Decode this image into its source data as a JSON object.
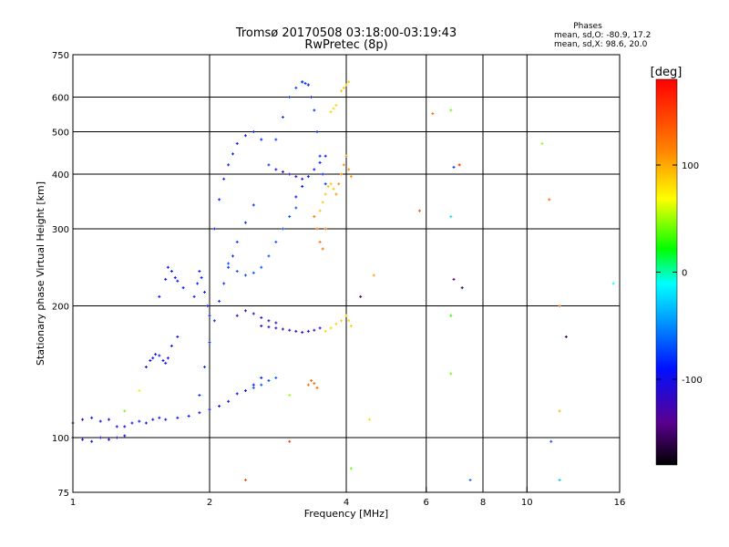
{
  "chart_data": {
    "type": "scatter",
    "title": "Tromsø 20170508 03:18:00-03:19:43",
    "subtitle": "RwPretec (8p)",
    "xlabel": "Frequency [MHz]",
    "ylabel": "Stationary phase Virtual Height [km]",
    "x_scale": "log",
    "y_scale": "log",
    "xlim": [
      1,
      16
    ],
    "ylim": [
      75,
      750
    ],
    "x_ticks": [
      1,
      2,
      4,
      6,
      8,
      10,
      16
    ],
    "y_ticks": [
      75,
      100,
      200,
      300,
      400,
      500,
      600,
      750
    ],
    "grid": true,
    "stats": {
      "heading": "Phases",
      "line_o": "mean, sd,O: -80.9, 17.2",
      "line_x": "mean, sd,X:  98.6, 20.0"
    },
    "colorbar": {
      "label": "[deg]",
      "range": [
        -180,
        180
      ],
      "ticks": [
        100,
        0,
        -100
      ]
    },
    "traces": [
      {
        "f": [
          1.0,
          1.05,
          1.1,
          1.15,
          1.2,
          1.25,
          1.3
        ],
        "h": [
          100,
          99,
          98,
          100,
          99,
          100,
          101
        ],
        "phase": -100
      },
      {
        "f": [
          1.0,
          1.05,
          1.1,
          1.15,
          1.2
        ],
        "h": [
          108,
          110,
          111,
          109,
          110
        ],
        "phase": -98
      },
      {
        "f": [
          1.25,
          1.3,
          1.35,
          1.4,
          1.45,
          1.5,
          1.55,
          1.6,
          1.7,
          1.8,
          1.9,
          2.0,
          2.1,
          2.2,
          2.3,
          2.4,
          2.5,
          2.6
        ],
        "h": [
          106,
          106,
          108,
          109,
          108,
          110,
          111,
          110,
          111,
          112,
          114,
          116,
          118,
          121,
          126,
          128,
          132,
          137
        ],
        "phase": -92
      },
      {
        "f": [
          1.45,
          1.48,
          1.5,
          1.52,
          1.55,
          1.58,
          1.6,
          1.62,
          1.65,
          1.7
        ],
        "h": [
          145,
          150,
          152,
          155,
          154,
          150,
          148,
          152,
          162,
          170
        ],
        "phase": -95
      },
      {
        "f": [
          1.55,
          1.6,
          1.62,
          1.65,
          1.68,
          1.7,
          1.75
        ],
        "h": [
          210,
          230,
          245,
          240,
          232,
          228,
          220
        ],
        "phase": -90
      },
      {
        "f": [
          1.85,
          1.88,
          1.9,
          1.92,
          1.95,
          1.98,
          2.0
        ],
        "h": [
          210,
          225,
          240,
          232,
          215,
          200,
          190
        ],
        "phase": -85
      },
      {
        "f": [
          1.9,
          1.95,
          2.0,
          2.05,
          2.1,
          2.15,
          2.2,
          2.25,
          2.3,
          2.4,
          2.5
        ],
        "h": [
          125,
          145,
          165,
          185,
          205,
          225,
          245,
          260,
          280,
          310,
          340
        ],
        "phase": -80
      },
      {
        "f": [
          2.05,
          2.1,
          2.15,
          2.2,
          2.25,
          2.3,
          2.4,
          2.5,
          2.6
        ],
        "h": [
          300,
          350,
          390,
          420,
          445,
          470,
          490,
          500,
          480
        ],
        "phase": -85
      },
      {
        "f": [
          2.2,
          2.3,
          2.4,
          2.5,
          2.6,
          2.7,
          2.8,
          2.9,
          3.0,
          3.1
        ],
        "h": [
          250,
          240,
          235,
          238,
          245,
          260,
          280,
          300,
          320,
          335
        ],
        "phase": -70
      },
      {
        "f": [
          2.7,
          2.8,
          2.9,
          3.0,
          3.1,
          3.2,
          3.3
        ],
        "h": [
          420,
          480,
          540,
          600,
          630,
          650,
          640
        ],
        "phase": -78
      },
      {
        "f": [
          3.2,
          3.25,
          3.3,
          3.35,
          3.4,
          3.45,
          3.5,
          3.55,
          3.6
        ],
        "h": [
          650,
          645,
          640,
          600,
          560,
          500,
          440,
          400,
          380
        ],
        "phase": -82
      },
      {
        "f": [
          3.1,
          3.2,
          3.3,
          3.4,
          3.5,
          3.6
        ],
        "h": [
          355,
          375,
          395,
          410,
          425,
          440
        ],
        "phase": -90
      },
      {
        "f": [
          2.8,
          2.9,
          3.0,
          3.1,
          3.2
        ],
        "h": [
          410,
          405,
          400,
          395,
          390
        ],
        "phase": -110
      },
      {
        "f": [
          2.3,
          2.4,
          2.5,
          2.6,
          2.7,
          2.8
        ],
        "h": [
          190,
          195,
          192,
          188,
          185,
          183
        ],
        "phase": -120
      },
      {
        "f": [
          2.6,
          2.7,
          2.8,
          2.9,
          3.0,
          3.1,
          3.2,
          3.3,
          3.4,
          3.5
        ],
        "h": [
          180,
          179,
          178,
          177,
          176,
          175,
          174,
          175,
          176,
          178
        ],
        "phase": -115
      },
      {
        "f": [
          3.4,
          3.45,
          3.5,
          3.55,
          3.6
        ],
        "h": [
          320,
          300,
          280,
          270,
          300
        ],
        "phase": 125
      },
      {
        "f": [
          3.5,
          3.55,
          3.6,
          3.65,
          3.7,
          3.75
        ],
        "h": [
          330,
          345,
          360,
          375,
          380,
          370
        ],
        "phase": 90
      },
      {
        "f": [
          3.8,
          3.85,
          3.9,
          3.95,
          4.0,
          4.05,
          4.1
        ],
        "h": [
          360,
          380,
          400,
          420,
          440,
          410,
          395
        ],
        "phase": 110
      },
      {
        "f": [
          3.6,
          3.7,
          3.8,
          3.9,
          4.0,
          4.05,
          4.1
        ],
        "h": [
          175,
          178,
          182,
          185,
          190,
          185,
          180
        ],
        "phase": 85
      },
      {
        "f": [
          3.9,
          3.95,
          4.0,
          4.05
        ],
        "h": [
          620,
          630,
          640,
          650
        ],
        "phase": 90
      },
      {
        "f": [
          3.7,
          3.75,
          3.8
        ],
        "h": [
          555,
          565,
          575
        ],
        "phase": 85
      },
      {
        "f": [
          3.3,
          3.35,
          3.4,
          3.45
        ],
        "h": [
          132,
          135,
          133,
          130
        ],
        "phase": 130
      },
      {
        "f": [
          2.5,
          2.6,
          2.7,
          2.8
        ],
        "h": [
          130,
          132,
          135,
          137
        ],
        "phase": -70
      }
    ],
    "scatter": [
      {
        "f": 2.4,
        "h": 80,
        "phase": 140
      },
      {
        "f": 3.0,
        "h": 98,
        "phase": 150
      },
      {
        "f": 4.3,
        "h": 210,
        "phase": -150
      },
      {
        "f": 5.8,
        "h": 330,
        "phase": 140
      },
      {
        "f": 6.2,
        "h": 550,
        "phase": 130
      },
      {
        "f": 6.8,
        "h": 560,
        "phase": 40
      },
      {
        "f": 6.8,
        "h": 320,
        "phase": -20
      },
      {
        "f": 6.9,
        "h": 415,
        "phase": -80
      },
      {
        "f": 7.1,
        "h": 420,
        "phase": 160
      },
      {
        "f": 6.9,
        "h": 230,
        "phase": -140
      },
      {
        "f": 7.2,
        "h": 220,
        "phase": -160
      },
      {
        "f": 6.8,
        "h": 190,
        "phase": 30
      },
      {
        "f": 6.8,
        "h": 140,
        "phase": 40
      },
      {
        "f": 7.5,
        "h": 80,
        "phase": -60
      },
      {
        "f": 10.8,
        "h": 470,
        "phase": 50
      },
      {
        "f": 11.2,
        "h": 350,
        "phase": 130
      },
      {
        "f": 11.8,
        "h": 200,
        "phase": 120
      },
      {
        "f": 12.2,
        "h": 170,
        "phase": -160
      },
      {
        "f": 11.8,
        "h": 115,
        "phase": 95
      },
      {
        "f": 11.3,
        "h": 98,
        "phase": -70
      },
      {
        "f": 11.8,
        "h": 80,
        "phase": -30
      },
      {
        "f": 15.5,
        "h": 225,
        "phase": -10
      },
      {
        "f": 4.5,
        "h": 110,
        "phase": 80
      },
      {
        "f": 4.6,
        "h": 235,
        "phase": 100
      },
      {
        "f": 4.1,
        "h": 85,
        "phase": 40
      },
      {
        "f": 3.0,
        "h": 125,
        "phase": 50
      },
      {
        "f": 1.3,
        "h": 115,
        "phase": 40
      },
      {
        "f": 1.4,
        "h": 128,
        "phase": 60
      }
    ]
  }
}
